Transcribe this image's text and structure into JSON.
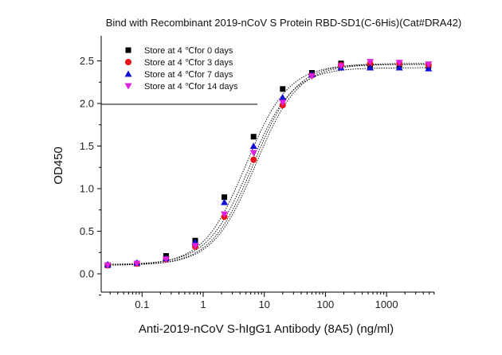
{
  "chart_data": {
    "type": "scatter",
    "title": "Bind with Recombinant 2019-nCoV S Protein RBD-SD1(C-6His)(Cat#DRA42)",
    "xlabel": "Anti-2019-nCoV S-hIgG1 Antibody (8A5) (ng/ml)",
    "ylabel": "OD450",
    "xscale": "log",
    "xlim": [
      0.02,
      5000
    ],
    "ylim": [
      -0.3,
      2.8
    ],
    "x_ticks": [
      0.1,
      1,
      10,
      100,
      1000
    ],
    "x_tick_labels": [
      "0.1",
      "1",
      "10",
      "100",
      "1000"
    ],
    "y_ticks": [
      0.0,
      0.5,
      1.0,
      1.5,
      2.0,
      2.5
    ],
    "y_tick_labels": [
      "0.0",
      "0.5",
      "1.0",
      "1.5",
      "2.0",
      "2.5"
    ],
    "grid": false,
    "legend_position": "top-left",
    "fit": "4-parameter logistic (dotted curves)",
    "x": [
      0.0274,
      0.0823,
      0.247,
      0.741,
      2.22,
      6.67,
      20,
      60,
      180,
      540,
      1620,
      4860
    ],
    "series": [
      {
        "name": "Store at 4 ℃for 0 days",
        "marker": "square",
        "color": "#000000",
        "values": [
          0.1,
          0.12,
          0.21,
          0.39,
          0.9,
          1.61,
          2.17,
          2.36,
          2.47,
          2.45,
          2.45,
          2.44
        ]
      },
      {
        "name": "Store at 4 ℃for 3 days",
        "marker": "circle",
        "color": "#e8141a",
        "values": [
          0.1,
          0.12,
          0.17,
          0.32,
          0.67,
          1.34,
          1.98,
          2.33,
          2.45,
          2.47,
          2.47,
          2.45
        ]
      },
      {
        "name": "Store at 4 ℃for 7 days",
        "marker": "triangle-up",
        "color": "#1010d8",
        "values": [
          0.11,
          0.13,
          0.18,
          0.37,
          0.84,
          1.5,
          2.07,
          2.34,
          2.42,
          2.42,
          2.42,
          2.41
        ]
      },
      {
        "name": "Store at 4 ℃for 14 days",
        "marker": "triangle-down",
        "color": "#e020e0",
        "values": [
          0.1,
          0.12,
          0.17,
          0.33,
          0.7,
          1.42,
          2.01,
          2.32,
          2.44,
          2.49,
          2.48,
          2.46
        ]
      }
    ]
  }
}
